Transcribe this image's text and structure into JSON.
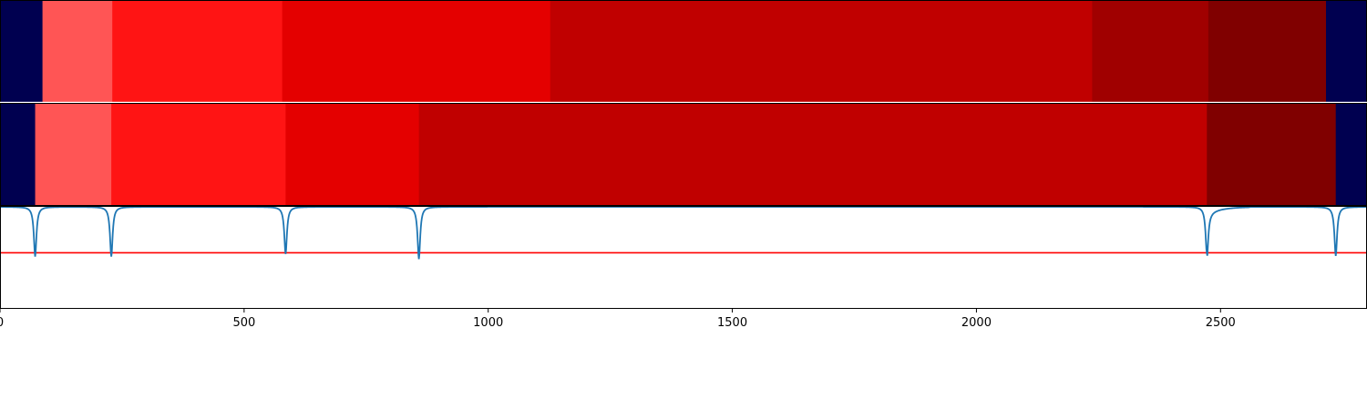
{
  "chart_data": {
    "type": "heatmap",
    "xlim": [
      0,
      2800
    ],
    "x_ticks": [
      0,
      500,
      1000,
      1500,
      2000,
      2500
    ],
    "x_tick_labels": [
      "0",
      "500",
      "1000",
      "1500",
      "2000",
      "2500"
    ],
    "colors": {
      "background_dark": "#000050",
      "level_1": "#ff5555",
      "level_2": "#ff1414",
      "level_3": "#e40000",
      "level_4": "#c00000",
      "level_5": "#a00000",
      "level_6": "#800000",
      "signal_line": "#1f77b4",
      "threshold_line": "#ff0000"
    },
    "bands": [
      {
        "segments": [
          {
            "x0": 0,
            "x1": 87,
            "color": "background_dark"
          },
          {
            "x0": 87,
            "x1": 230,
            "color": "level_1"
          },
          {
            "x0": 230,
            "x1": 578,
            "color": "level_2"
          },
          {
            "x0": 578,
            "x1": 1127,
            "color": "level_3"
          },
          {
            "x0": 1127,
            "x1": 2237,
            "color": "level_4"
          },
          {
            "x0": 2237,
            "x1": 2475,
            "color": "level_5"
          },
          {
            "x0": 2475,
            "x1": 2716,
            "color": "level_6"
          },
          {
            "x0": 2716,
            "x1": 2800,
            "color": "background_dark"
          }
        ]
      },
      {
        "segments": [
          {
            "x0": 0,
            "x1": 72,
            "color": "background_dark"
          },
          {
            "x0": 72,
            "x1": 228,
            "color": "level_1"
          },
          {
            "x0": 228,
            "x1": 585,
            "color": "level_2"
          },
          {
            "x0": 585,
            "x1": 858,
            "color": "level_3"
          },
          {
            "x0": 858,
            "x1": 2472,
            "color": "level_4"
          },
          {
            "x0": 2472,
            "x1": 2736,
            "color": "level_6"
          },
          {
            "x0": 2736,
            "x1": 2800,
            "color": "background_dark"
          }
        ]
      }
    ],
    "signal": {
      "baseline": 0,
      "dips": [
        {
          "x": 72,
          "depth": 0.78
        },
        {
          "x": 228,
          "depth": 0.78
        },
        {
          "x": 585,
          "depth": 0.74
        },
        {
          "x": 858,
          "depth": 0.82
        },
        {
          "x": 2472,
          "depth": 0.73
        },
        {
          "x": 2736,
          "depth": 0.77
        }
      ]
    },
    "threshold": 0.7
  }
}
